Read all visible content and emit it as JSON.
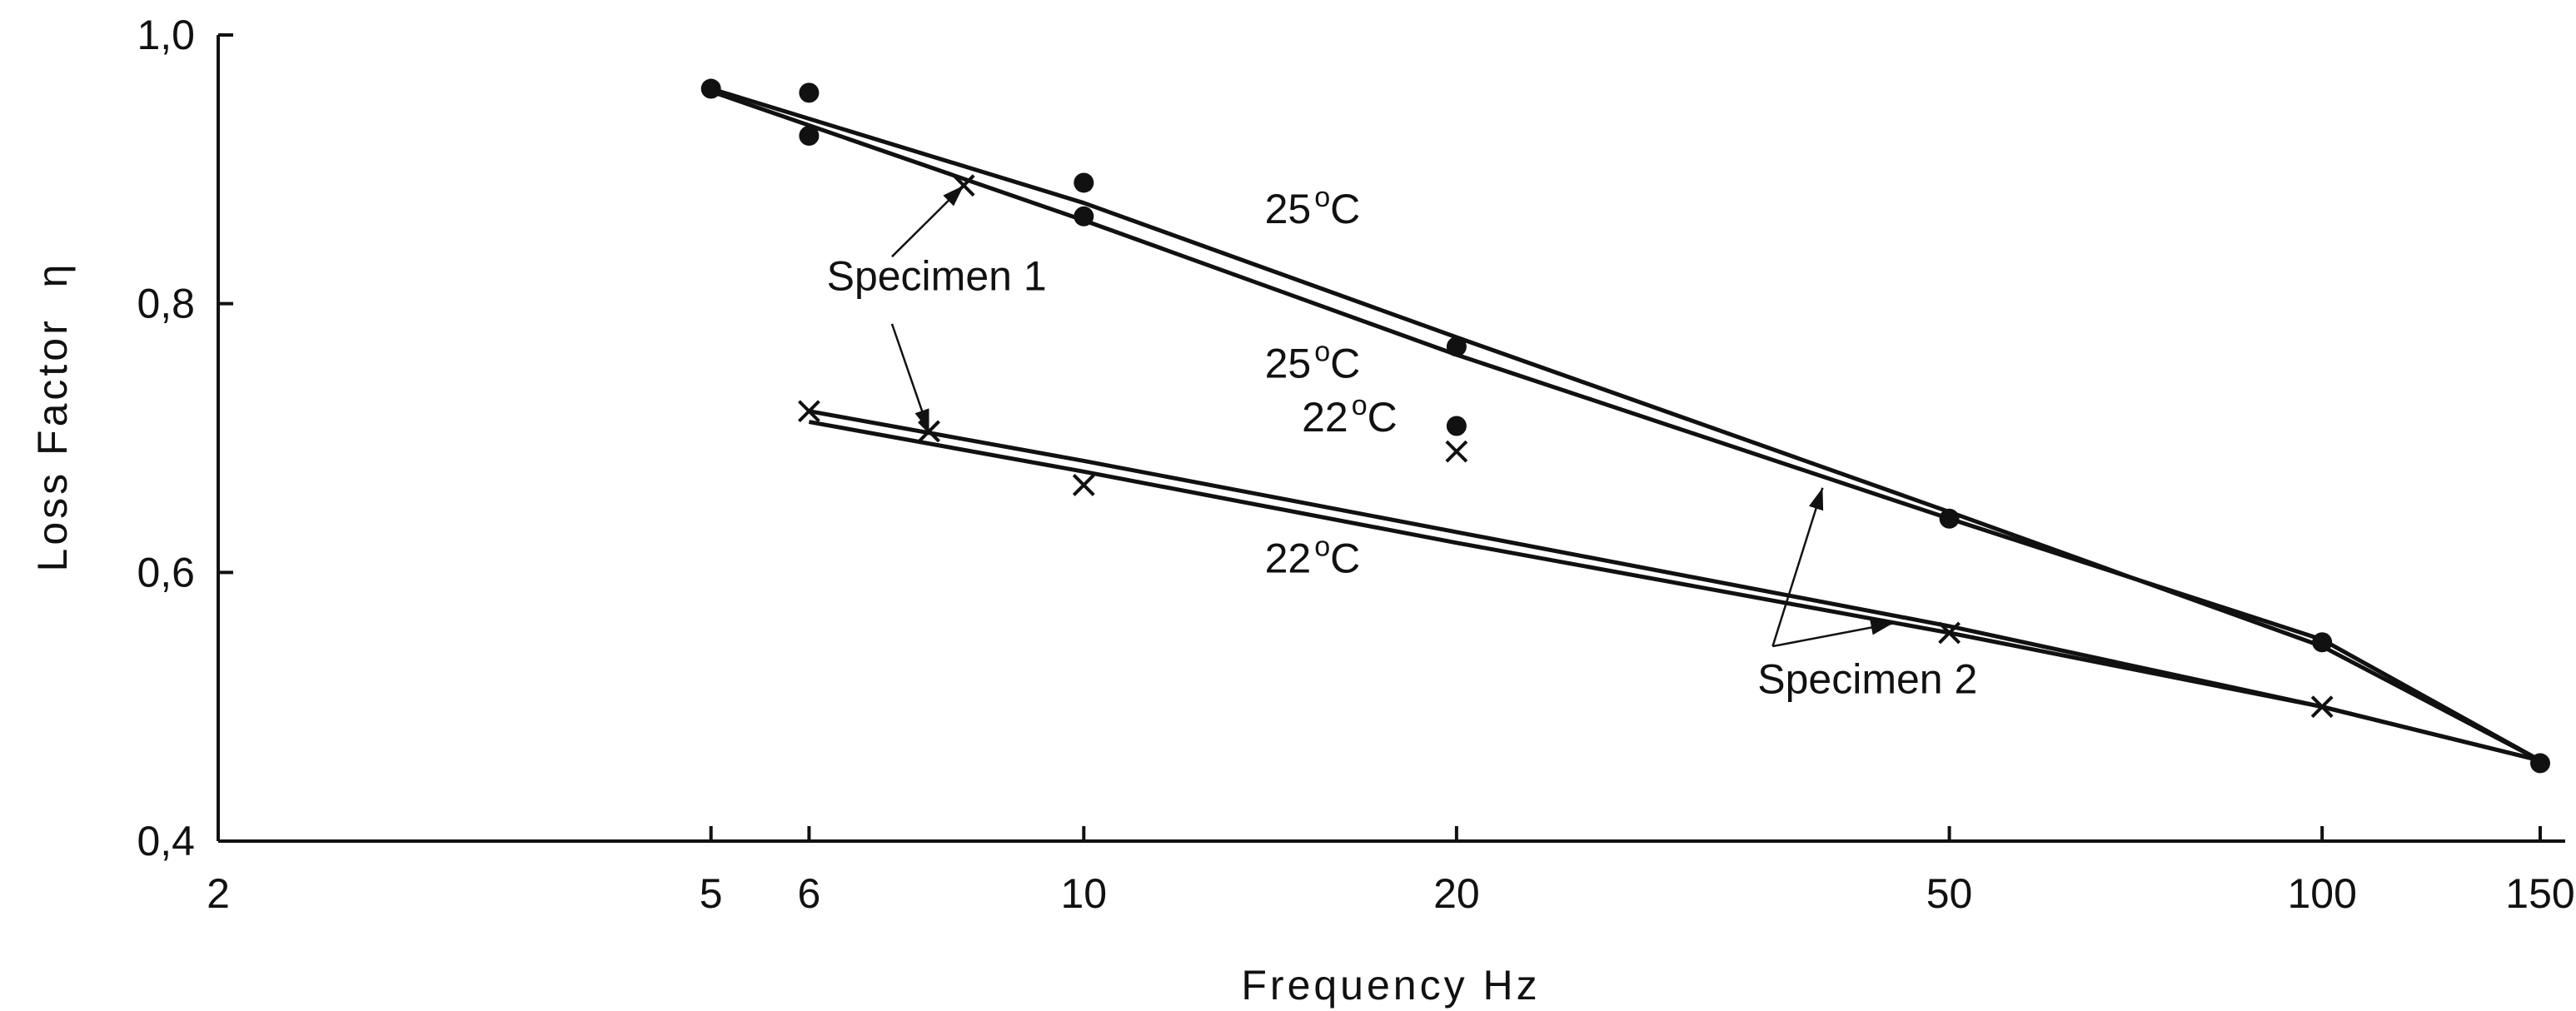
{
  "chart_data": {
    "type": "line",
    "xscale": "log",
    "xlabel": "Frequency Hz",
    "ylabel": "Loss Factor",
    "ylabel_symbol": "η",
    "xlim": [
      2,
      150
    ],
    "ylim": [
      0.4,
      1.0
    ],
    "x_ticks": [
      {
        "value": 2,
        "label": "2"
      },
      {
        "value": 5,
        "label": "5"
      },
      {
        "value": 6,
        "label": "6"
      },
      {
        "value": 10,
        "label": "10"
      },
      {
        "value": 20,
        "label": "20"
      },
      {
        "value": 50,
        "label": "50"
      },
      {
        "value": 100,
        "label": "100"
      },
      {
        "value": 150,
        "label": "150"
      }
    ],
    "y_ticks": [
      {
        "value": 0.4,
        "label": "0,4"
      },
      {
        "value": 0.6,
        "label": "0,6"
      },
      {
        "value": 0.8,
        "label": "0,8"
      },
      {
        "value": 1.0,
        "label": "1,0"
      }
    ],
    "grid": false,
    "series": [
      {
        "x": [
          5,
          10,
          20,
          50,
          100,
          150
        ],
        "y": [
          0.96,
          0.875,
          0.775,
          0.645,
          0.545,
          0.46
        ],
        "marker": "dot"
      },
      {
        "x": [
          5,
          10,
          20,
          50,
          100,
          150
        ],
        "y": [
          0.958,
          0.862,
          0.762,
          0.64,
          0.55,
          0.46
        ],
        "marker": "dot"
      },
      {
        "x": [
          6,
          10,
          20,
          50,
          100,
          150
        ],
        "y": [
          0.72,
          0.683,
          0.63,
          0.56,
          0.5,
          0.46
        ],
        "marker": "x"
      },
      {
        "x": [
          6,
          10,
          20,
          50,
          100,
          150
        ],
        "y": [
          0.712,
          0.675,
          0.622,
          0.555,
          0.5,
          0.46
        ],
        "marker": "x"
      }
    ],
    "points": [
      {
        "x": 5,
        "y": 0.96,
        "marker": "dot"
      },
      {
        "x": 6,
        "y": 0.957,
        "marker": "dot"
      },
      {
        "x": 6,
        "y": 0.925,
        "marker": "dot"
      },
      {
        "x": 8,
        "y": 0.888,
        "marker": "x"
      },
      {
        "x": 10,
        "y": 0.89,
        "marker": "dot"
      },
      {
        "x": 10,
        "y": 0.865,
        "marker": "dot"
      },
      {
        "x": 20,
        "y": 0.768,
        "marker": "dot"
      },
      {
        "x": 20,
        "y": 0.709,
        "marker": "dot"
      },
      {
        "x": 50,
        "y": 0.64,
        "marker": "dot"
      },
      {
        "x": 100,
        "y": 0.548,
        "marker": "dot"
      },
      {
        "x": 150,
        "y": 0.458,
        "marker": "dot"
      },
      {
        "x": 6,
        "y": 0.72,
        "marker": "x"
      },
      {
        "x": 7.5,
        "y": 0.705,
        "marker": "x"
      },
      {
        "x": 10,
        "y": 0.665,
        "marker": "x"
      },
      {
        "x": 20,
        "y": 0.69,
        "marker": "x"
      },
      {
        "x": 50,
        "y": 0.555,
        "marker": "x"
      },
      {
        "x": 100,
        "y": 0.5,
        "marker": "x"
      }
    ],
    "annotations": [
      {
        "id": "t25-upper",
        "text": "25",
        "unit": "C",
        "x": 14,
        "y": 0.86
      },
      {
        "id": "t25-lower",
        "text": "25",
        "unit": "C",
        "x": 14,
        "y": 0.745
      },
      {
        "id": "t22-upper",
        "text": "22",
        "unit": "C",
        "x": 15,
        "y": 0.705
      },
      {
        "id": "t22-lower",
        "text": "22",
        "unit": "C",
        "x": 14,
        "y": 0.6
      },
      {
        "id": "specimen-1",
        "text": "Specimen 1",
        "x": 6.2,
        "y": 0.81
      },
      {
        "id": "specimen-2",
        "text": "Specimen 2",
        "x": 35,
        "y": 0.51
      }
    ]
  }
}
